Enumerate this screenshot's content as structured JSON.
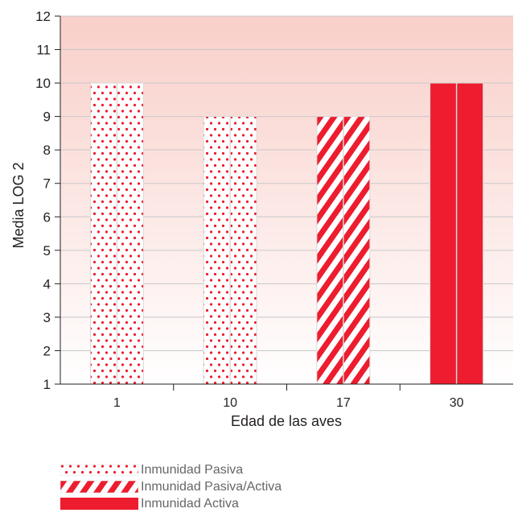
{
  "chart_data": {
    "type": "bar",
    "categories": [
      "1",
      "10",
      "17",
      "30"
    ],
    "values": [
      10,
      9,
      9,
      10
    ],
    "series_type": [
      "Inmunidad Pasiva",
      "Inmunidad Pasiva",
      "Inmunidad Pasiva/Activa",
      "Inmunidad Activa"
    ],
    "xlabel": "Edad de las aves",
    "ylabel": "Media LOG 2",
    "ylim": [
      1,
      12
    ],
    "yticks": [
      "1",
      "2",
      "3",
      "4",
      "5",
      "6",
      "7",
      "8",
      "9",
      "10",
      "11",
      "12"
    ],
    "legend": [
      {
        "label": "Inmunidad Pasiva",
        "pattern": "dots"
      },
      {
        "label": "Inmunidad Pasiva/Activa",
        "pattern": "stripes"
      },
      {
        "label": "Inmunidad Activa",
        "pattern": "solid"
      }
    ],
    "legend_position": "bottom-left",
    "colors": {
      "accent": "#ed1c2e",
      "bg_top": "#f9cfc9",
      "bg_bottom": "#ffffff"
    }
  }
}
